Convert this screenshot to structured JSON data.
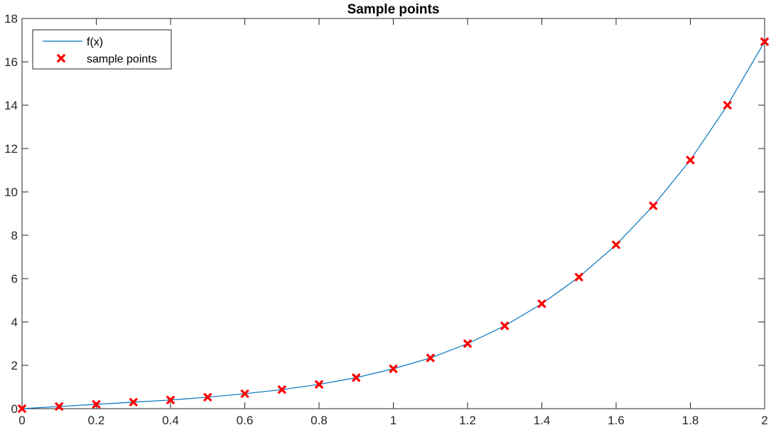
{
  "chart_data": {
    "type": "line",
    "title": "Sample points",
    "xlabel": "",
    "ylabel": "",
    "xlim": [
      0,
      2
    ],
    "ylim": [
      0,
      18
    ],
    "xticks": [
      0,
      0.2,
      0.4,
      0.6,
      0.8,
      1,
      1.2,
      1.4,
      1.6,
      1.8,
      2
    ],
    "xtick_labels": [
      "0",
      "0.2",
      "0.4",
      "0.6",
      "0.8",
      "1",
      "1.2",
      "1.4",
      "1.6",
      "1.8",
      "2"
    ],
    "yticks": [
      0,
      2,
      4,
      6,
      8,
      10,
      12,
      14,
      16,
      18
    ],
    "ytick_labels": [
      "0",
      "2",
      "4",
      "6",
      "8",
      "10",
      "12",
      "14",
      "16",
      "18"
    ],
    "grid": false,
    "legend_position": "top-left",
    "series": [
      {
        "name": "f(x)",
        "style": "line",
        "color": "#0072BD",
        "x": [
          0,
          0.1,
          0.2,
          0.3,
          0.4,
          0.5,
          0.6,
          0.7,
          0.8,
          0.9,
          1,
          1.1,
          1.2,
          1.3,
          1.4,
          1.5,
          1.6,
          1.7,
          1.8,
          1.9,
          2
        ],
        "y": [
          0,
          0.1,
          0.2,
          0.3,
          0.4,
          0.53,
          0.69,
          0.88,
          1.12,
          1.43,
          1.84,
          2.34,
          3.0,
          3.82,
          4.84,
          6.07,
          7.56,
          9.36,
          11.47,
          14.0,
          16.93
        ]
      },
      {
        "name": "sample points",
        "style": "marker-x",
        "color": "#FF0000",
        "x": [
          0,
          0.1,
          0.2,
          0.3,
          0.4,
          0.5,
          0.6,
          0.7,
          0.8,
          0.9,
          1,
          1.1,
          1.2,
          1.3,
          1.4,
          1.5,
          1.6,
          1.7,
          1.8,
          1.9,
          2
        ],
        "y": [
          0,
          0.1,
          0.2,
          0.3,
          0.4,
          0.53,
          0.69,
          0.88,
          1.12,
          1.43,
          1.84,
          2.34,
          3.0,
          3.82,
          4.84,
          6.07,
          7.56,
          9.36,
          11.47,
          14.0,
          16.93
        ]
      }
    ]
  }
}
